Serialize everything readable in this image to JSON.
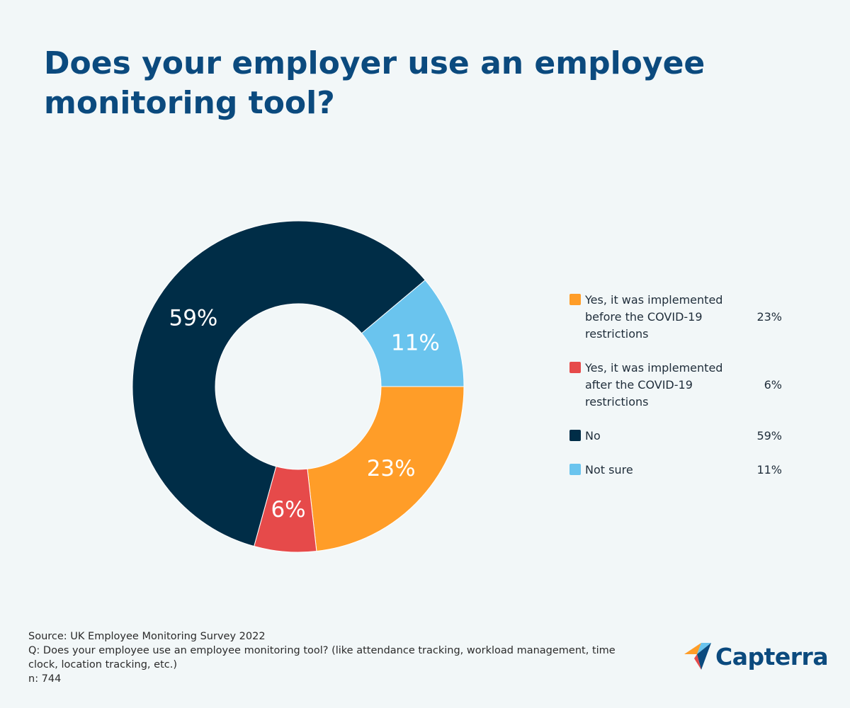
{
  "chart_data": {
    "type": "donut",
    "title": "Does your employer use an employee monitoring tool?",
    "categories": [
      "Yes, it was implemented before the COVID-19 restrictions",
      "Yes, it was implemented after the COVID-19 restrictions",
      "No",
      "Not sure"
    ],
    "values": [
      23,
      6,
      59,
      11
    ],
    "value_labels": [
      "23%",
      "6%",
      "59%",
      "11%"
    ],
    "colors": [
      "#ff9d28",
      "#e64a4a",
      "#002d47",
      "#6ac4ee"
    ],
    "legend": "right",
    "notes": [
      "Source: UK Employee Monitoring Survey 2022",
      "Q: Does your employee use an employee monitoring tool? (like attendance tracking, workload management, time clock, location tracking, etc.)",
      "n: 744"
    ],
    "logo": "Capterra"
  }
}
